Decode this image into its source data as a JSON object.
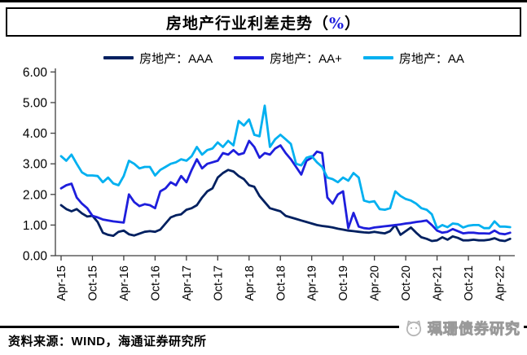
{
  "title": {
    "main": "房地产行业利差走势",
    "paren_open": "（",
    "percent": "%",
    "paren_close": "）",
    "percent_color": "#1E1EDC"
  },
  "legend": [
    {
      "label": "房地产：AAA",
      "color": "#002060"
    },
    {
      "label": "房地产：AA+",
      "color": "#1E1EDC"
    },
    {
      "label": "房地产：AA",
      "color": "#00B0F0"
    }
  ],
  "chart_data": {
    "type": "line",
    "title": "房地产行业利差走势（%）",
    "start_month": "Apr-15",
    "frequency": "monthly",
    "x_tick_labels": [
      "Apr-15",
      "Oct-15",
      "Apr-16",
      "Oct-16",
      "Apr-17",
      "Oct-17",
      "Apr-18",
      "Oct-18",
      "Apr-19",
      "Oct-19",
      "Apr-20",
      "Oct-20",
      "Apr-21",
      "Oct-21",
      "Apr-22"
    ],
    "y_tick_labels": [
      "0.00",
      "1.00",
      "2.00",
      "3.00",
      "4.00",
      "5.00",
      "6.00"
    ],
    "ylim": [
      0,
      6
    ],
    "grid": false,
    "legend_position": "top",
    "series": [
      {
        "name": "房地产：AAA",
        "color": "#002060",
        "values": [
          1.65,
          1.52,
          1.45,
          1.52,
          1.38,
          1.28,
          1.3,
          1.1,
          0.75,
          0.68,
          0.65,
          0.78,
          0.82,
          0.7,
          0.66,
          0.72,
          0.78,
          0.8,
          0.78,
          0.85,
          1.05,
          1.25,
          1.32,
          1.35,
          1.5,
          1.55,
          1.65,
          1.9,
          2.1,
          2.2,
          2.55,
          2.7,
          2.8,
          2.75,
          2.6,
          2.5,
          2.3,
          2.25,
          1.95,
          1.75,
          1.55,
          1.5,
          1.45,
          1.3,
          1.25,
          1.2,
          1.15,
          1.1,
          1.05,
          1.0,
          0.97,
          0.95,
          0.92,
          0.88,
          0.85,
          0.82,
          0.8,
          0.78,
          0.76,
          0.75,
          0.78,
          0.75,
          0.73,
          0.8,
          1.0,
          0.68,
          0.8,
          0.92,
          0.75,
          0.6,
          0.55,
          0.48,
          0.5,
          0.6,
          0.52,
          0.63,
          0.58,
          0.5,
          0.5,
          0.52,
          0.5,
          0.5,
          0.52,
          0.57,
          0.5,
          0.48,
          0.55
        ]
      },
      {
        "name": "房地产：AA+",
        "color": "#1E1EDC",
        "values": [
          2.2,
          2.3,
          2.35,
          1.9,
          1.7,
          1.55,
          1.3,
          1.25,
          1.18,
          1.15,
          1.12,
          1.1,
          1.08,
          2.0,
          1.75,
          1.62,
          1.68,
          1.65,
          1.55,
          2.1,
          2.2,
          2.4,
          2.3,
          2.6,
          2.4,
          2.8,
          3.15,
          2.85,
          3.0,
          3.05,
          3.1,
          3.35,
          3.3,
          3.45,
          3.3,
          3.35,
          3.75,
          3.55,
          3.2,
          3.35,
          3.3,
          3.5,
          3.6,
          3.35,
          3.15,
          2.9,
          2.65,
          3.1,
          3.2,
          3.4,
          3.35,
          1.9,
          1.7,
          2.0,
          2.1,
          0.9,
          1.4,
          0.95,
          0.9,
          0.88,
          0.92,
          0.94,
          0.96,
          0.98,
          1.0,
          1.02,
          1.05,
          1.07,
          1.1,
          1.12,
          1.15,
          1.0,
          0.82,
          0.75,
          0.78,
          0.87,
          0.8,
          0.73,
          0.75,
          0.75,
          0.73,
          0.73,
          0.72,
          0.82,
          0.72,
          0.7,
          0.75
        ]
      },
      {
        "name": "房地产：AA",
        "color": "#00B0F0",
        "values": [
          3.25,
          3.1,
          3.3,
          3.0,
          2.72,
          2.62,
          2.62,
          2.6,
          2.4,
          2.55,
          2.36,
          2.3,
          2.6,
          3.1,
          3.0,
          2.85,
          2.9,
          2.9,
          2.62,
          2.8,
          2.9,
          3.0,
          3.05,
          3.15,
          3.1,
          3.25,
          3.55,
          3.3,
          3.45,
          3.5,
          3.7,
          3.55,
          3.75,
          3.6,
          4.4,
          4.25,
          4.45,
          3.95,
          3.9,
          4.9,
          3.55,
          3.8,
          3.95,
          3.8,
          3.65,
          3.0,
          2.95,
          3.2,
          3.25,
          3.05,
          2.9,
          2.55,
          2.5,
          2.4,
          2.55,
          2.45,
          2.7,
          2.55,
          1.8,
          1.75,
          1.78,
          1.52,
          1.5,
          1.55,
          2.1,
          1.95,
          1.85,
          1.8,
          1.7,
          1.55,
          1.5,
          1.35,
          0.9,
          1.0,
          0.93,
          1.05,
          1.03,
          0.92,
          0.98,
          1.0,
          1.0,
          0.9,
          0.9,
          1.12,
          0.95,
          0.95,
          0.93
        ]
      }
    ]
  },
  "footer": {
    "source": "资料来源：WIND，海通证券研究所",
    "watermark": "珮珊债券研究"
  },
  "colors": {
    "axis": "#3F3F3F",
    "text": "#000000"
  }
}
